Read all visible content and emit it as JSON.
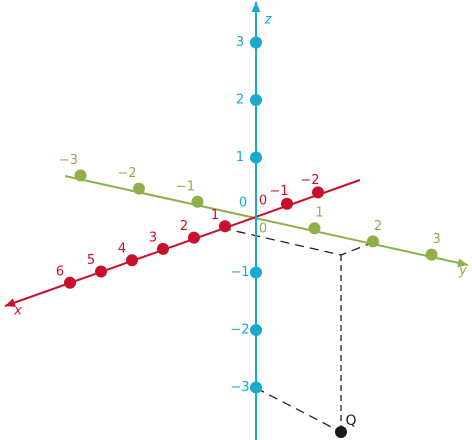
{
  "axes": {
    "x": {
      "name": "x",
      "color": "#c8102e",
      "ticks": [
        {
          "value": 6,
          "label": "6"
        },
        {
          "value": 5,
          "label": "5"
        },
        {
          "value": 4,
          "label": "4"
        },
        {
          "value": 3,
          "label": "3"
        },
        {
          "value": 2,
          "label": "2"
        },
        {
          "value": 1,
          "label": "1"
        },
        {
          "value": 0,
          "label": "0"
        },
        {
          "value": -1,
          "label": "−1"
        },
        {
          "value": -2,
          "label": "−2"
        }
      ]
    },
    "y": {
      "name": "y",
      "color": "#8db04b",
      "ticks": [
        {
          "value": -3,
          "label": "−3"
        },
        {
          "value": -2,
          "label": "−2"
        },
        {
          "value": -1,
          "label": "−1"
        },
        {
          "value": 0,
          "label": "0"
        },
        {
          "value": 1,
          "label": "1"
        },
        {
          "value": 2,
          "label": "2"
        },
        {
          "value": 3,
          "label": "3"
        }
      ]
    },
    "z": {
      "name": "z",
      "color": "#19a9cc",
      "ticks": [
        {
          "value": 3,
          "label": "3"
        },
        {
          "value": 2,
          "label": "2"
        },
        {
          "value": 1,
          "label": "1"
        },
        {
          "value": 0,
          "label": "0"
        },
        {
          "value": -1,
          "label": "−1"
        },
        {
          "value": -2,
          "label": "−2"
        },
        {
          "value": -3,
          "label": "−3"
        }
      ]
    }
  },
  "point": {
    "label": "Q"
  }
}
